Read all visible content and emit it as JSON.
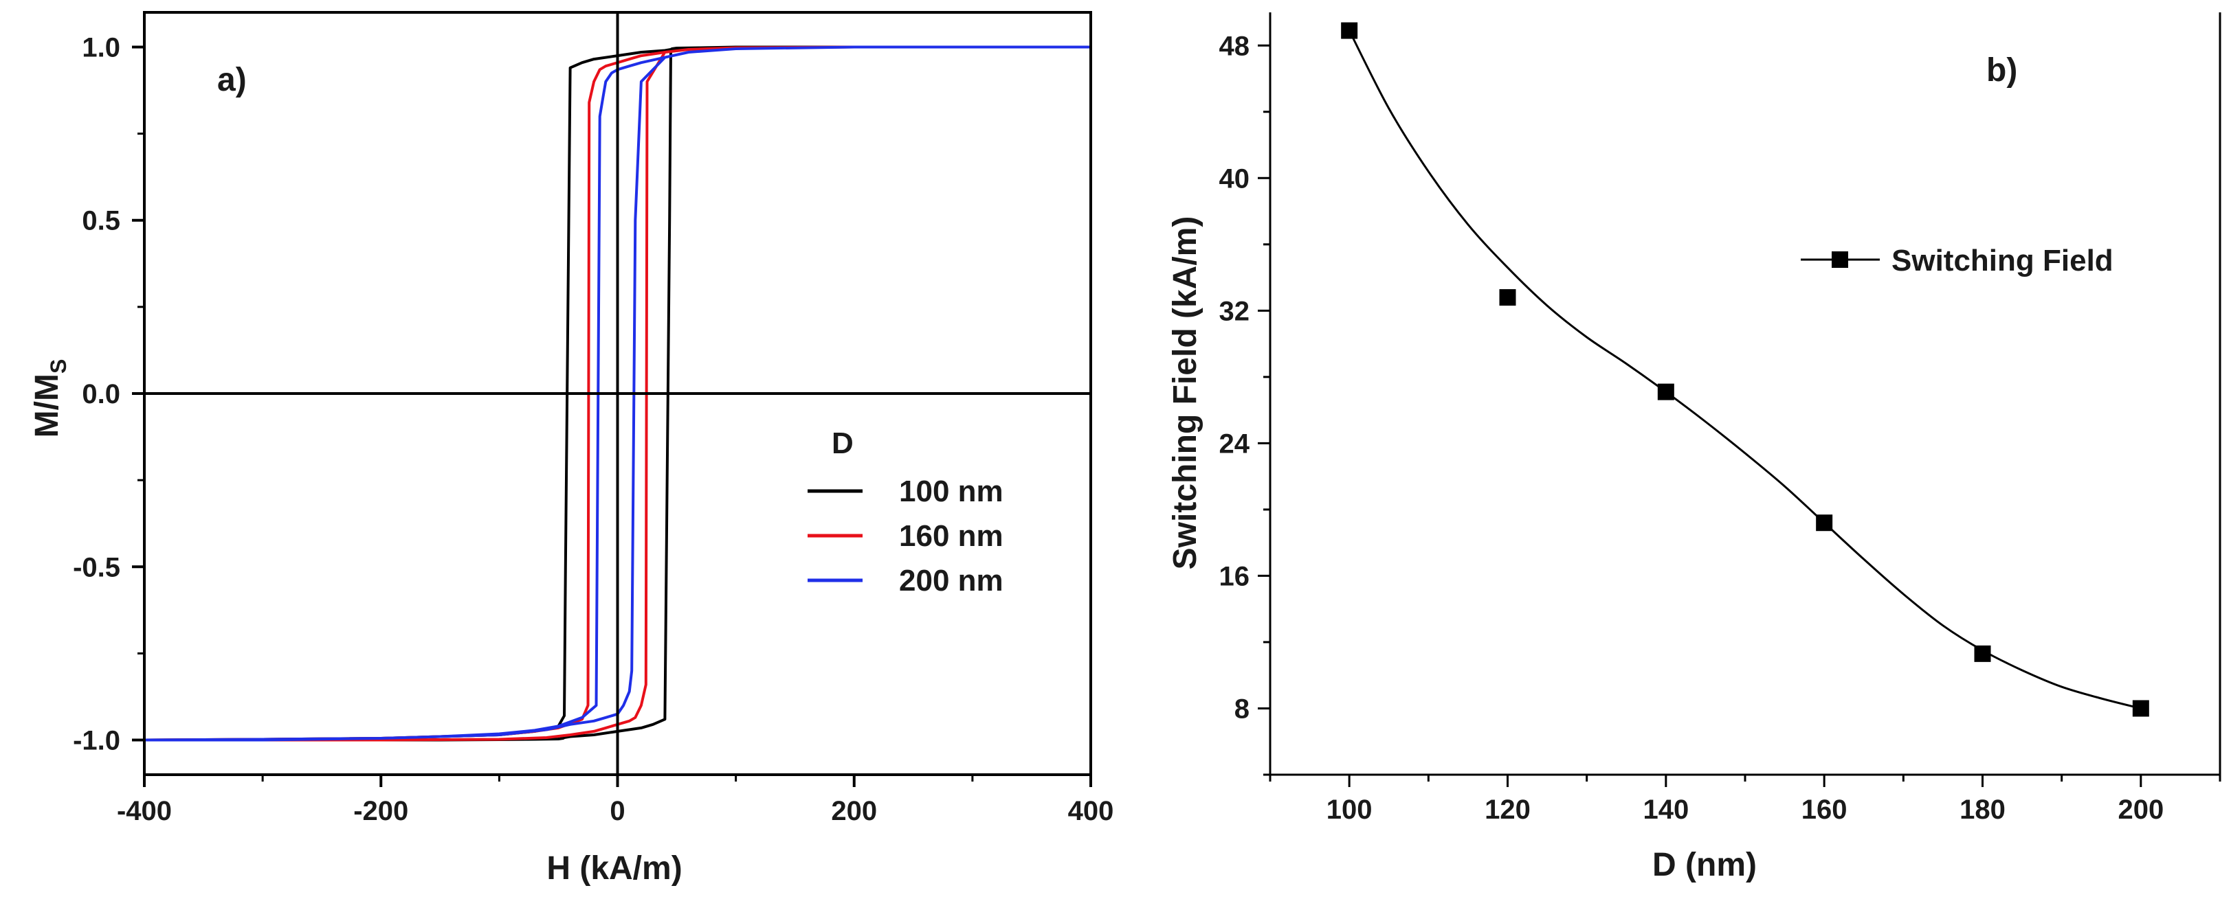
{
  "chart_data": [
    {
      "type": "line",
      "panel_label": "a)",
      "xlabel": "H (kA/m)",
      "ylabel_main": "M/M",
      "ylabel_sub": "S",
      "xlim": [
        -400,
        400
      ],
      "ylim": [
        -1.1,
        1.1
      ],
      "x_ticks": [
        -400,
        -200,
        0,
        200,
        400
      ],
      "x_tick_labels": [
        "-400",
        "-200",
        "0",
        "200",
        "400"
      ],
      "y_ticks": [
        -1.0,
        -0.5,
        0.0,
        0.5,
        1.0
      ],
      "y_tick_labels": [
        "-1.0",
        "-0.5",
        "0.0",
        "0.5",
        "1.0"
      ],
      "zero_lines": true,
      "legend_title": "D",
      "legend_position": "center-right",
      "series": [
        {
          "name": "100 nm",
          "color": "#000000",
          "x": [
            -400,
            -300,
            -200,
            -150,
            -100,
            -70,
            -50,
            -45,
            -44,
            -40,
            -30,
            -20,
            0,
            20,
            40,
            45,
            46,
            50,
            70,
            100,
            150,
            200,
            300,
            400,
            300,
            200,
            150,
            100,
            70,
            50,
            45,
            44,
            40,
            30,
            20,
            0,
            -20,
            -40,
            -45,
            -46,
            -50,
            -70,
            -100,
            -150,
            -200,
            -300,
            -400
          ],
          "y": [
            -1.0,
            -0.998,
            -0.995,
            -0.99,
            -0.985,
            -0.975,
            -0.96,
            -0.93,
            -0.5,
            0.94,
            0.955,
            0.965,
            0.975,
            0.985,
            0.99,
            0.993,
            0.995,
            0.997,
            0.998,
            0.999,
            1.0,
            1.0,
            1.0,
            1.0,
            1.0,
            1.0,
            1.0,
            1.0,
            0.998,
            0.995,
            0.993,
            0.5,
            -0.94,
            -0.955,
            -0.965,
            -0.975,
            -0.985,
            -0.99,
            -0.993,
            -0.995,
            -0.997,
            -0.998,
            -0.999,
            -1.0,
            -1.0,
            -1.0,
            -1.0
          ]
        },
        {
          "name": "160 nm",
          "color": "#e8101a",
          "x": [
            -400,
            -300,
            -200,
            -150,
            -100,
            -70,
            -50,
            -30,
            -25,
            -24,
            -20,
            -15,
            -10,
            0,
            10,
            20,
            40,
            60,
            100,
            200,
            300,
            400,
            300,
            200,
            100,
            60,
            40,
            25,
            24,
            20,
            15,
            10,
            0,
            -10,
            -20,
            -40,
            -60,
            -100,
            -200,
            -300,
            -400
          ],
          "y": [
            -1.0,
            -0.998,
            -0.995,
            -0.99,
            -0.985,
            -0.975,
            -0.965,
            -0.94,
            -0.9,
            0.84,
            0.9,
            0.935,
            0.945,
            0.955,
            0.965,
            0.975,
            0.985,
            0.993,
            0.998,
            1.0,
            1.0,
            1.0,
            1.0,
            1.0,
            0.998,
            0.993,
            0.985,
            0.9,
            -0.84,
            -0.9,
            -0.935,
            -0.945,
            -0.955,
            -0.965,
            -0.975,
            -0.985,
            -0.993,
            -0.998,
            -1.0,
            -1.0,
            -1.0
          ]
        },
        {
          "name": "200 nm",
          "color": "#1f2fe8",
          "x": [
            -400,
            -300,
            -200,
            -150,
            -100,
            -70,
            -50,
            -30,
            -18,
            -15,
            -12,
            -10,
            -5,
            0,
            10,
            20,
            40,
            60,
            100,
            200,
            300,
            400,
            300,
            200,
            100,
            60,
            40,
            20,
            15,
            12,
            10,
            5,
            0,
            -10,
            -20,
            -40,
            -60,
            -100,
            -200,
            -300,
            -400
          ],
          "y": [
            -1.0,
            -0.998,
            -0.995,
            -0.99,
            -0.982,
            -0.972,
            -0.96,
            -0.935,
            -0.9,
            0.8,
            0.86,
            0.9,
            0.925,
            0.935,
            0.945,
            0.955,
            0.97,
            0.985,
            0.995,
            1.0,
            1.0,
            1.0,
            1.0,
            1.0,
            0.995,
            0.985,
            0.97,
            0.9,
            0.5,
            -0.8,
            -0.86,
            -0.9,
            -0.925,
            -0.935,
            -0.945,
            -0.955,
            -0.97,
            -0.985,
            -0.995,
            -1.0,
            -1.0
          ]
        }
      ]
    },
    {
      "type": "scatter",
      "panel_label": "b)",
      "xlabel": "D (nm)",
      "ylabel": "Switching Field (kA/m)",
      "xlim": [
        90,
        210
      ],
      "ylim": [
        4,
        50
      ],
      "x_ticks": [
        100,
        120,
        140,
        160,
        180,
        200
      ],
      "x_tick_labels": [
        "100",
        "120",
        "140",
        "160",
        "180",
        "200"
      ],
      "x_minor_ticks": [
        90,
        110,
        130,
        150,
        170,
        190,
        210
      ],
      "y_ticks": [
        8,
        16,
        24,
        32,
        40,
        48
      ],
      "y_tick_labels": [
        "8",
        "16",
        "24",
        "32",
        "40",
        "48"
      ],
      "y_minor_ticks": [
        4,
        12,
        20,
        28,
        36,
        44
      ],
      "legend_position": "top-right",
      "series": [
        {
          "name": "Switching Field",
          "color": "#000000",
          "marker": "square",
          "x": [
            100,
            120,
            140,
            160,
            180,
            200
          ],
          "y": [
            48.9,
            32.8,
            27.1,
            19.2,
            11.3,
            8.0
          ]
        }
      ],
      "fit_curve": {
        "x": [
          100,
          105,
          110,
          115,
          120,
          125,
          130,
          135,
          140,
          145,
          150,
          155,
          160,
          165,
          170,
          175,
          180,
          185,
          190,
          195,
          200
        ],
        "y": [
          48.9,
          44.2,
          40.4,
          37.2,
          34.6,
          32.3,
          30.4,
          28.8,
          27.1,
          25.3,
          23.4,
          21.4,
          19.2,
          17.0,
          14.9,
          13.0,
          11.5,
          10.3,
          9.3,
          8.6,
          8.0
        ]
      }
    }
  ]
}
